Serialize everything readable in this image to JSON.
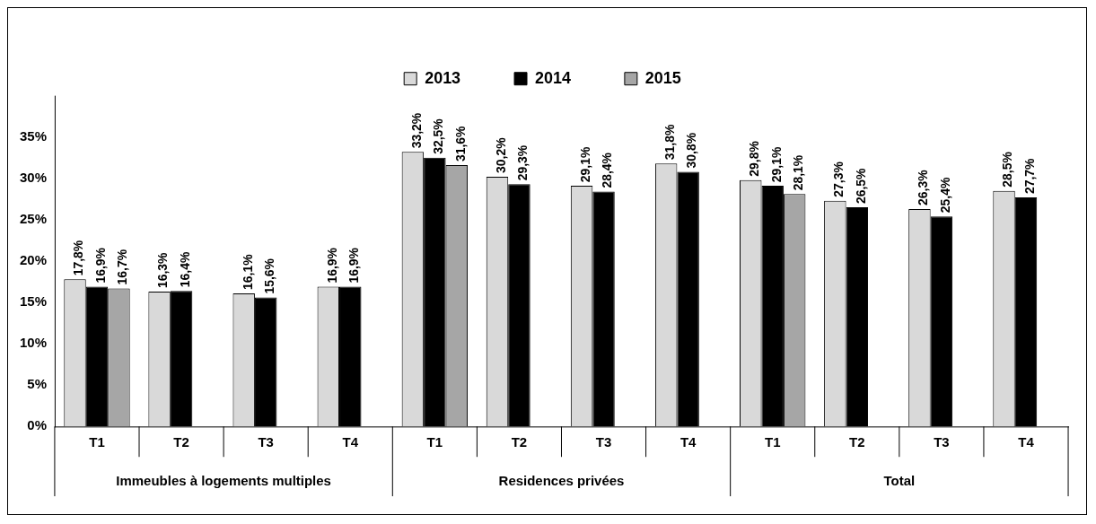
{
  "chart_data": {
    "type": "bar",
    "categories": [
      "T1",
      "T2",
      "T3",
      "T4",
      "T1",
      "T2",
      "T3",
      "T4",
      "T1",
      "T2",
      "T3",
      "T4"
    ],
    "series": [
      {
        "name": "2013",
        "color": "#d9d9d9",
        "values": [
          17.8,
          16.3,
          16.1,
          16.9,
          33.2,
          30.2,
          29.1,
          31.8,
          29.8,
          27.3,
          26.3,
          28.5
        ],
        "value_labels": [
          "17,8%",
          "16,3%",
          "16,1%",
          "16,9%",
          "33,2%",
          "30,2%",
          "29,1%",
          "31,8%",
          "29,8%",
          "27,3%",
          "26,3%",
          "28,5%"
        ]
      },
      {
        "name": "2014",
        "color": "#000000",
        "values": [
          16.9,
          16.4,
          15.6,
          16.9,
          32.5,
          29.3,
          28.4,
          30.8,
          29.1,
          26.5,
          25.4,
          27.7
        ],
        "value_labels": [
          "16,9%",
          "16,4%",
          "15,6%",
          "16,9%",
          "32,5%",
          "29,3%",
          "28,4%",
          "30,8%",
          "29,1%",
          "26,5%",
          "25,4%",
          "27,7%"
        ]
      },
      {
        "name": "2015",
        "color": "#a6a6a6",
        "values": [
          16.7,
          null,
          null,
          null,
          31.6,
          null,
          null,
          null,
          28.1,
          null,
          null,
          null
        ],
        "value_labels": [
          "16,7%",
          null,
          null,
          null,
          "31,6%",
          null,
          null,
          null,
          "28,1%",
          null,
          null,
          null
        ]
      }
    ],
    "annotations": [
      "Immeubles à logements multiples",
      "Residences privées",
      "Total"
    ],
    "ylim": [
      0,
      40
    ],
    "yticks": [
      {
        "value": 0,
        "label": "0%"
      },
      {
        "value": 5,
        "label": "5%"
      },
      {
        "value": 10,
        "label": "10%"
      },
      {
        "value": 15,
        "label": "15%"
      },
      {
        "value": 20,
        "label": "20%"
      },
      {
        "value": 25,
        "label": "25%"
      },
      {
        "value": 30,
        "label": "30%"
      },
      {
        "value": 35,
        "label": "35%"
      }
    ],
    "grid": false,
    "legend": "top"
  }
}
